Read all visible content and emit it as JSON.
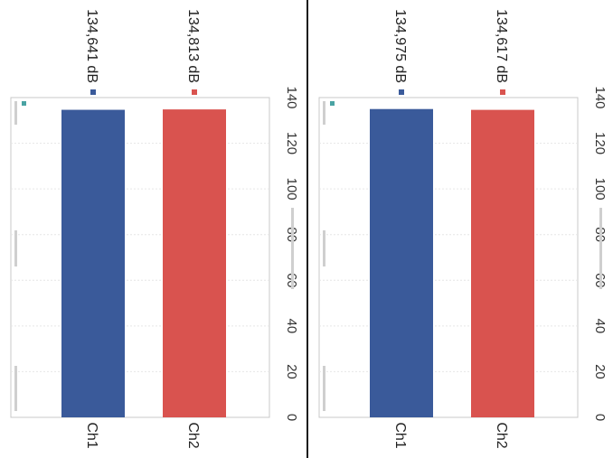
{
  "chart_data": [
    {
      "type": "bar",
      "orientation": "horizontal",
      "rotated": "90deg clockwise",
      "categories": [
        "Ch1",
        "Ch2"
      ],
      "values": [
        134.641,
        134.813
      ],
      "data_labels": [
        "134,641 dB",
        "134,813 dB"
      ],
      "colors": [
        "#3a5a9a",
        "#d9534f"
      ],
      "xlim": [
        0,
        140
      ],
      "xticks": [
        "0",
        "20",
        "40",
        "60",
        "80",
        "100",
        "120",
        "140"
      ],
      "grid": true,
      "legend": "none"
    },
    {
      "type": "bar",
      "orientation": "horizontal",
      "rotated": "90deg clockwise",
      "categories": [
        "Ch1",
        "Ch2"
      ],
      "values": [
        134.975,
        134.617
      ],
      "data_labels": [
        "134,975 dB",
        "134,617 dB"
      ],
      "colors": [
        "#3a5a9a",
        "#d9534f"
      ],
      "xlim": [
        0,
        140
      ],
      "xticks": [
        "0",
        "20",
        "40",
        "60",
        "80",
        "100",
        "120",
        "140"
      ],
      "grid": true,
      "legend": "none"
    }
  ]
}
